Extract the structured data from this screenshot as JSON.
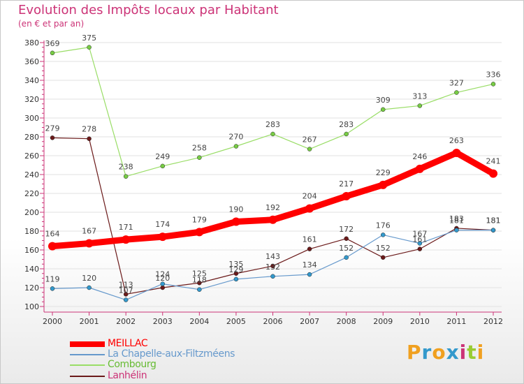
{
  "chart_data": {
    "type": "line",
    "title": "Evolution des Impôts locaux par Habitant",
    "subtitle": "(en € et par an)",
    "x": [
      "2000",
      "2001",
      "2002",
      "2003",
      "2004",
      "2005",
      "2006",
      "2007",
      "2008",
      "2009",
      "2010",
      "2011",
      "2012"
    ],
    "ylim": [
      100,
      380
    ],
    "yticks": [
      "100",
      "120",
      "140",
      "160",
      "180",
      "200",
      "220",
      "240",
      "260",
      "280",
      "300",
      "320",
      "340",
      "360",
      "380"
    ],
    "series": [
      {
        "name": "MEILLAC",
        "color": "#ff0000",
        "values": [
          164,
          167,
          171,
          174,
          179,
          190,
          192,
          204,
          217,
          229,
          246,
          263,
          241
        ]
      },
      {
        "name": "La Chapelle-aux-Filtzméens",
        "color": "#6699cc",
        "values": [
          119,
          120,
          107,
          124,
          118,
          129,
          132,
          134,
          152,
          176,
          167,
          181,
          181
        ]
      },
      {
        "name": "Combourg",
        "color": "#99dd66",
        "values": [
          369,
          375,
          238,
          249,
          258,
          270,
          283,
          267,
          283,
          309,
          313,
          327,
          336
        ]
      },
      {
        "name": "Lanhélin",
        "color": "#6b1a1a",
        "values": [
          279,
          278,
          113,
          120,
          125,
          135,
          143,
          161,
          172,
          152,
          161,
          183,
          181
        ]
      }
    ],
    "point_labels": {
      "MEILLAC": [
        "164",
        "167",
        "171",
        "174",
        "179",
        "190",
        "192",
        "204",
        "217",
        "229",
        "246",
        "263",
        "241"
      ],
      "La Chapelle-aux-Filtzméens": [
        "119",
        "120",
        "107",
        "124",
        "118",
        "129",
        "132",
        "134",
        "152",
        "176",
        "167",
        "181",
        "181"
      ],
      "Combourg": [
        "369",
        "375",
        "238",
        "249",
        "258",
        "270",
        "283",
        "267",
        "283",
        "309",
        "313",
        "327",
        "336"
      ],
      "Lanhélin": [
        "279",
        "278",
        "113",
        "120",
        "125",
        "135",
        "143",
        "161",
        "172",
        "152",
        "161",
        "183",
        "181"
      ]
    }
  },
  "logo": {
    "text": "Proxiti",
    "letters": [
      "P",
      "r",
      "o",
      "x",
      "i",
      "t",
      "i"
    ],
    "colors": [
      "#f0a020",
      "#3399cc",
      "#f0a020",
      "#3399cc",
      "#cc3377",
      "#99cc33",
      "#f0a020"
    ]
  }
}
